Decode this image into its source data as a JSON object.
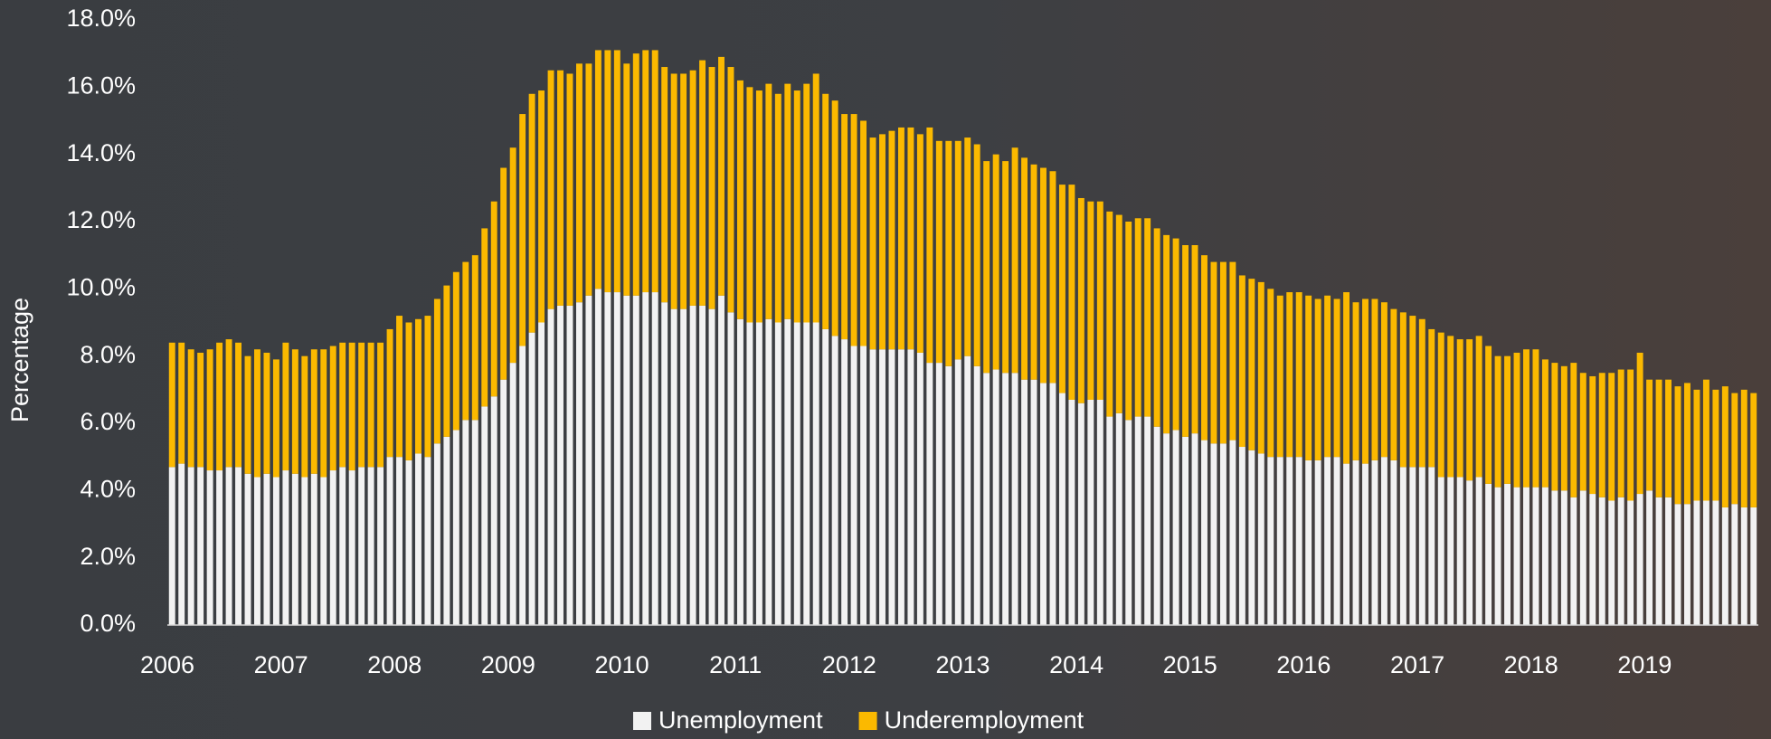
{
  "chart_data": {
    "type": "stacked_bar",
    "y_label": "Percentage",
    "categories": [
      "2006",
      null,
      null,
      null,
      null,
      null,
      null,
      null,
      null,
      null,
      null,
      null,
      "2007",
      null,
      null,
      null,
      null,
      null,
      null,
      null,
      null,
      null,
      null,
      null,
      "2008",
      null,
      null,
      null,
      null,
      null,
      null,
      null,
      null,
      null,
      null,
      null,
      "2009",
      null,
      null,
      null,
      null,
      null,
      null,
      null,
      null,
      null,
      null,
      null,
      "2010",
      null,
      null,
      null,
      null,
      null,
      null,
      null,
      null,
      null,
      null,
      null,
      "2011",
      null,
      null,
      null,
      null,
      null,
      null,
      null,
      null,
      null,
      null,
      null,
      "2012",
      null,
      null,
      null,
      null,
      null,
      null,
      null,
      null,
      null,
      null,
      null,
      "2013",
      null,
      null,
      null,
      null,
      null,
      null,
      null,
      null,
      null,
      null,
      null,
      "2014",
      null,
      null,
      null,
      null,
      null,
      null,
      null,
      null,
      null,
      null,
      null,
      "2015",
      null,
      null,
      null,
      null,
      null,
      null,
      null,
      null,
      null,
      null,
      null,
      "2016",
      null,
      null,
      null,
      null,
      null,
      null,
      null,
      null,
      null,
      null,
      null,
      "2017",
      null,
      null,
      null,
      null,
      null,
      null,
      null,
      null,
      null,
      null,
      null,
      "2018",
      null,
      null,
      null,
      null,
      null,
      null,
      null,
      null,
      null,
      null,
      null,
      "2019",
      null,
      null,
      null,
      null,
      null,
      null,
      null,
      null,
      null,
      null,
      null
    ],
    "series": [
      {
        "name": "Unemployment",
        "color": "#f2f2f2",
        "values": [
          4.7,
          4.8,
          4.7,
          4.7,
          4.6,
          4.6,
          4.7,
          4.7,
          4.5,
          4.4,
          4.5,
          4.4,
          4.6,
          4.5,
          4.4,
          4.5,
          4.4,
          4.6,
          4.7,
          4.6,
          4.7,
          4.7,
          4.7,
          5.0,
          5.0,
          4.9,
          5.1,
          5.0,
          5.4,
          5.6,
          5.8,
          6.1,
          6.1,
          6.5,
          6.8,
          7.3,
          7.8,
          8.3,
          8.7,
          9.0,
          9.4,
          9.5,
          9.5,
          9.6,
          9.8,
          10.0,
          9.9,
          9.9,
          9.8,
          9.8,
          9.9,
          9.9,
          9.6,
          9.4,
          9.4,
          9.5,
          9.5,
          9.4,
          9.8,
          9.3,
          9.1,
          9.0,
          9.0,
          9.1,
          9.0,
          9.1,
          9.0,
          9.0,
          9.0,
          8.8,
          8.6,
          8.5,
          8.3,
          8.3,
          8.2,
          8.2,
          8.2,
          8.2,
          8.2,
          8.1,
          7.8,
          7.8,
          7.7,
          7.9,
          8.0,
          7.7,
          7.5,
          7.6,
          7.5,
          7.5,
          7.3,
          7.3,
          7.2,
          7.2,
          6.9,
          6.7,
          6.6,
          6.7,
          6.7,
          6.2,
          6.3,
          6.1,
          6.2,
          6.2,
          5.9,
          5.7,
          5.8,
          5.6,
          5.7,
          5.5,
          5.4,
          5.4,
          5.5,
          5.3,
          5.2,
          5.1,
          5.0,
          5.0,
          5.0,
          5.0,
          4.9,
          4.9,
          5.0,
          5.0,
          4.8,
          4.9,
          4.8,
          4.9,
          5.0,
          4.9,
          4.7,
          4.7,
          4.7,
          4.7,
          4.4,
          4.4,
          4.4,
          4.3,
          4.4,
          4.2,
          4.1,
          4.2,
          4.1,
          4.1,
          4.1,
          4.1,
          4.0,
          4.0,
          3.8,
          4.0,
          3.9,
          3.8,
          3.7,
          3.8,
          3.7,
          3.9,
          4.0,
          3.8,
          3.8,
          3.6,
          3.6,
          3.7,
          3.7,
          3.7,
          3.5,
          3.6,
          3.5,
          3.5
        ]
      },
      {
        "name": "Underemployment",
        "color": "#fbb900",
        "values": [
          3.7,
          3.6,
          3.5,
          3.4,
          3.6,
          3.8,
          3.8,
          3.7,
          3.5,
          3.8,
          3.6,
          3.5,
          3.8,
          3.7,
          3.6,
          3.7,
          3.8,
          3.7,
          3.7,
          3.8,
          3.7,
          3.7,
          3.7,
          3.8,
          4.2,
          4.1,
          4.0,
          4.2,
          4.3,
          4.5,
          4.7,
          4.7,
          4.9,
          5.3,
          5.8,
          6.3,
          6.4,
          6.9,
          7.1,
          6.9,
          7.1,
          7.0,
          6.9,
          7.1,
          6.9,
          7.1,
          7.2,
          7.2,
          6.9,
          7.2,
          7.2,
          7.2,
          7.0,
          7.0,
          7.0,
          7.0,
          7.3,
          7.2,
          7.1,
          7.3,
          7.1,
          7.0,
          6.9,
          7.0,
          6.8,
          7.0,
          6.9,
          7.1,
          7.4,
          7.0,
          7.0,
          6.7,
          6.9,
          6.7,
          6.3,
          6.4,
          6.5,
          6.6,
          6.6,
          6.5,
          7.0,
          6.6,
          6.7,
          6.5,
          6.5,
          6.6,
          6.3,
          6.4,
          6.3,
          6.7,
          6.6,
          6.4,
          6.4,
          6.3,
          6.2,
          6.4,
          6.1,
          5.9,
          5.9,
          6.1,
          5.9,
          5.9,
          5.9,
          5.9,
          5.9,
          5.9,
          5.7,
          5.7,
          5.6,
          5.5,
          5.4,
          5.4,
          5.3,
          5.1,
          5.1,
          5.1,
          5.0,
          4.8,
          4.9,
          4.9,
          4.9,
          4.8,
          4.8,
          4.7,
          5.1,
          4.7,
          4.9,
          4.8,
          4.6,
          4.5,
          4.6,
          4.5,
          4.4,
          4.1,
          4.3,
          4.2,
          4.1,
          4.2,
          4.2,
          4.1,
          3.9,
          3.8,
          4.0,
          4.1,
          4.1,
          3.8,
          3.8,
          3.7,
          4.0,
          3.5,
          3.5,
          3.7,
          3.8,
          3.8,
          3.9,
          4.2,
          3.3,
          3.5,
          3.5,
          3.5,
          3.6,
          3.3,
          3.6,
          3.3,
          3.6,
          3.3,
          3.5,
          3.4
        ]
      }
    ],
    "ylim": [
      0,
      18
    ],
    "yticks": [
      {
        "value": 0,
        "label": "0.0%"
      },
      {
        "value": 2,
        "label": "2.0%"
      },
      {
        "value": 4,
        "label": "4.0%"
      },
      {
        "value": 6,
        "label": "6.0%"
      },
      {
        "value": 8,
        "label": "8.0%"
      },
      {
        "value": 10,
        "label": "10.0%"
      },
      {
        "value": 12,
        "label": "12.0%"
      },
      {
        "value": 14,
        "label": "14.0%"
      },
      {
        "value": 16,
        "label": "16.0%"
      },
      {
        "value": 18,
        "label": "18.0%"
      }
    ],
    "legend": "bottom"
  }
}
